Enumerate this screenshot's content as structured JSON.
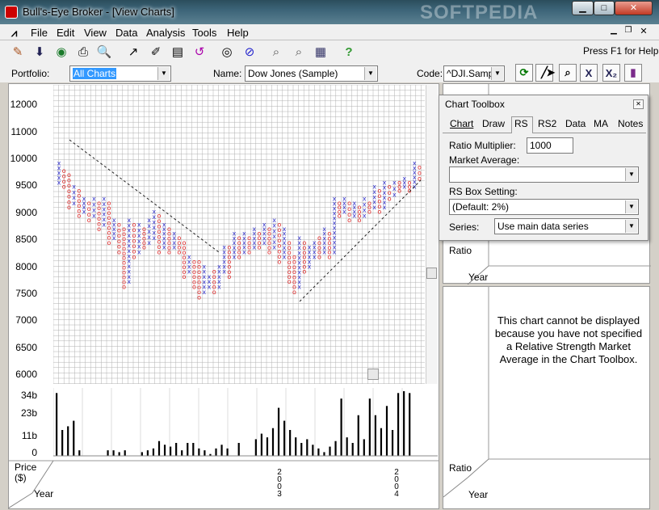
{
  "window": {
    "title": "Bull's-Eye Broker - [View Charts]",
    "watermark": "SOFTPEDIA"
  },
  "menu": [
    "File",
    "Edit",
    "View",
    "Data",
    "Analysis",
    "Tools",
    "Help"
  ],
  "toolbar": {
    "help_hint": "Press F1 for Help"
  },
  "fields": {
    "portfolio_label": "Portfolio:",
    "portfolio_value": "All Charts",
    "name_label": "Name:",
    "name_value": "Dow Jones (Sample)",
    "code_label": "Code:",
    "code_value": "^DJI.Samp"
  },
  "price_chart": {
    "y_ticks": [
      "12000",
      "11000",
      "10000",
      "9500",
      "9000",
      "8500",
      "8000",
      "7500",
      "7000",
      "6500",
      "6000"
    ],
    "label_price": "Price",
    "label_price_unit": "($)",
    "label_year": "Year",
    "year_marks": [
      "2003",
      "2004"
    ]
  },
  "volume_chart": {
    "y_ticks": [
      "34b",
      "23b",
      "11b",
      "0"
    ]
  },
  "toolbox": {
    "title": "Chart Toolbox",
    "tabs": [
      "Chart",
      "Draw",
      "RS",
      "RS2",
      "Data",
      "MA",
      "Notes"
    ],
    "active_tab": "RS",
    "ratio_multiplier_label": "Ratio Multiplier:",
    "ratio_multiplier_value": "1000",
    "market_average_label": "Market Average:",
    "market_average_value": "",
    "rs_box_label": "RS Box Setting:",
    "rs_box_value": "(Default: 2%)",
    "series_label": "Series:",
    "series_value": "Use main data series"
  },
  "side": {
    "ratio_label_top": "Ratio",
    "year_label_top": "Year",
    "message": "This chart cannot be displayed because you have not specified a Relative Strength Market Average in the Chart Toolbox.",
    "ratio_label_bottom": "Ratio",
    "year_label_bottom": "Year"
  },
  "colors": {
    "x_mark": "#3333cc",
    "o_mark": "#dd2222",
    "grid": "#b0b0b0"
  },
  "chart_data": {
    "type": "point-and-figure",
    "columns": [
      {
        "t": "X",
        "low": 9800,
        "high": 10300
      },
      {
        "t": "O",
        "low": 9700,
        "high": 10100
      },
      {
        "t": "O",
        "low": 9200,
        "high": 10000
      },
      {
        "t": "X",
        "low": 9300,
        "high": 9700
      },
      {
        "t": "O",
        "low": 9000,
        "high": 9600
      },
      {
        "t": "X",
        "low": 9100,
        "high": 9400
      },
      {
        "t": "O",
        "low": 8900,
        "high": 9300
      },
      {
        "t": "X",
        "low": 9000,
        "high": 9400
      },
      {
        "t": "O",
        "low": 8700,
        "high": 9300
      },
      {
        "t": "X",
        "low": 8800,
        "high": 9400
      },
      {
        "t": "O",
        "low": 8400,
        "high": 9300
      },
      {
        "t": "X",
        "low": 8500,
        "high": 8900
      },
      {
        "t": "O",
        "low": 8200,
        "high": 8800
      },
      {
        "t": "O",
        "low": 7500,
        "high": 8700
      },
      {
        "t": "X",
        "low": 7600,
        "high": 8900
      },
      {
        "t": "O",
        "low": 8100,
        "high": 8800
      },
      {
        "t": "X",
        "low": 8200,
        "high": 8800
      },
      {
        "t": "O",
        "low": 8300,
        "high": 8700
      },
      {
        "t": "X",
        "low": 8400,
        "high": 8900
      },
      {
        "t": "X",
        "low": 8500,
        "high": 9100
      },
      {
        "t": "O",
        "low": 8200,
        "high": 9000
      },
      {
        "t": "X",
        "low": 8300,
        "high": 8800
      },
      {
        "t": "O",
        "low": 8200,
        "high": 8700
      },
      {
        "t": "X",
        "low": 8300,
        "high": 8600
      },
      {
        "t": "O",
        "low": 8200,
        "high": 8500
      },
      {
        "t": "O",
        "low": 7700,
        "high": 8400
      },
      {
        "t": "X",
        "low": 7800,
        "high": 8100
      },
      {
        "t": "O",
        "low": 7500,
        "high": 8000
      },
      {
        "t": "O",
        "low": 7300,
        "high": 8000
      },
      {
        "t": "X",
        "low": 7400,
        "high": 7900
      },
      {
        "t": "X",
        "low": 7500,
        "high": 7700
      },
      {
        "t": "O",
        "low": 7400,
        "high": 7800
      },
      {
        "t": "X",
        "low": 7500,
        "high": 7900
      },
      {
        "t": "X",
        "low": 7800,
        "high": 8300
      },
      {
        "t": "O",
        "low": 7700,
        "high": 8300
      },
      {
        "t": "X",
        "low": 8100,
        "high": 8600
      },
      {
        "t": "O",
        "low": 8100,
        "high": 8500
      },
      {
        "t": "X",
        "low": 8200,
        "high": 8600
      },
      {
        "t": "O",
        "low": 8200,
        "high": 8500
      },
      {
        "t": "X",
        "low": 8300,
        "high": 8700
      },
      {
        "t": "O",
        "low": 8300,
        "high": 8600
      },
      {
        "t": "X",
        "low": 8400,
        "high": 8800
      },
      {
        "t": "O",
        "low": 8200,
        "high": 8700
      },
      {
        "t": "X",
        "low": 8300,
        "high": 8900
      },
      {
        "t": "O",
        "low": 8000,
        "high": 8800
      },
      {
        "t": "X",
        "low": 8100,
        "high": 8700
      },
      {
        "t": "O",
        "low": 7600,
        "high": 8400
      },
      {
        "t": "O",
        "low": 7400,
        "high": 8100
      },
      {
        "t": "X",
        "low": 7500,
        "high": 8500
      },
      {
        "t": "O",
        "low": 7800,
        "high": 8400
      },
      {
        "t": "X",
        "low": 7900,
        "high": 8300
      },
      {
        "t": "X",
        "low": 8100,
        "high": 8400
      },
      {
        "t": "O",
        "low": 8100,
        "high": 8500
      },
      {
        "t": "X",
        "low": 8200,
        "high": 8700
      },
      {
        "t": "O",
        "low": 8100,
        "high": 8600
      },
      {
        "t": "X",
        "low": 8200,
        "high": 9400
      },
      {
        "t": "O",
        "low": 9000,
        "high": 9300
      },
      {
        "t": "X",
        "low": 9100,
        "high": 9400
      },
      {
        "t": "O",
        "low": 8900,
        "high": 9300
      },
      {
        "t": "X",
        "low": 9000,
        "high": 9300
      },
      {
        "t": "O",
        "low": 8900,
        "high": 9200
      },
      {
        "t": "X",
        "low": 9000,
        "high": 9400
      },
      {
        "t": "O",
        "low": 9100,
        "high": 9300
      },
      {
        "t": "X",
        "low": 9200,
        "high": 9700
      },
      {
        "t": "O",
        "low": 9100,
        "high": 9600
      },
      {
        "t": "X",
        "low": 9200,
        "high": 9800
      },
      {
        "t": "O",
        "low": 9400,
        "high": 9700
      },
      {
        "t": "X",
        "low": 9500,
        "high": 9800
      },
      {
        "t": "O",
        "low": 9600,
        "high": 9800
      },
      {
        "t": "X",
        "low": 9700,
        "high": 9900
      },
      {
        "t": "O",
        "low": 9600,
        "high": 9800
      },
      {
        "t": "X",
        "low": 9700,
        "high": 10300
      },
      {
        "t": "O",
        "low": 9900,
        "high": 10200
      }
    ],
    "volume": [
      34,
      14,
      16,
      19,
      3,
      0,
      0,
      0,
      0,
      3,
      3,
      2,
      3,
      0,
      0,
      2,
      3,
      4,
      8,
      6,
      5,
      7,
      3,
      7,
      7,
      4,
      3,
      1,
      4,
      6,
      4,
      0,
      7,
      0,
      0,
      9,
      12,
      10,
      15,
      26,
      19,
      14,
      10,
      7,
      9,
      6,
      4,
      2,
      5,
      8,
      31,
      10,
      7,
      22,
      9,
      31,
      22,
      15,
      27,
      14,
      34,
      35,
      34
    ]
  }
}
